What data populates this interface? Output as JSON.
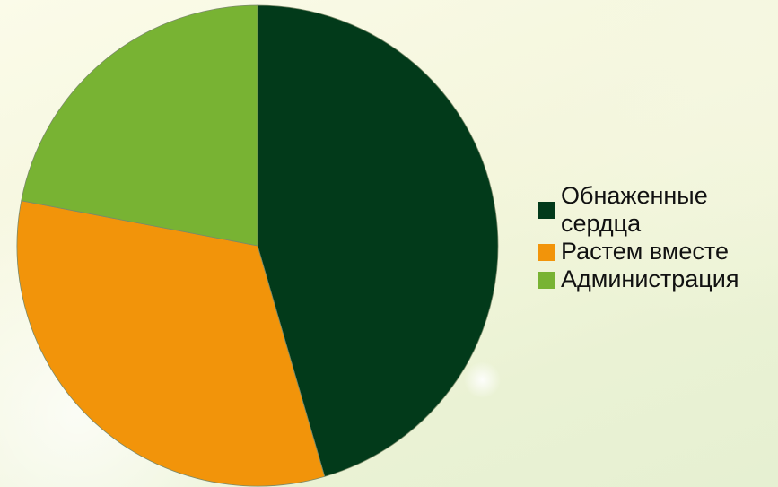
{
  "chart_data": {
    "type": "pie",
    "title": "",
    "start_angle_deg": 0,
    "direction": "clockwise",
    "legend_position": "right",
    "slices": [
      {
        "label": "Обнаженные сердца",
        "value": 45.5,
        "color": "#023a1a"
      },
      {
        "label": "Растем вместе",
        "value": 32.5,
        "color": "#f2940a"
      },
      {
        "label": "Администрация",
        "value": 22.0,
        "color": "#78b333"
      }
    ]
  }
}
